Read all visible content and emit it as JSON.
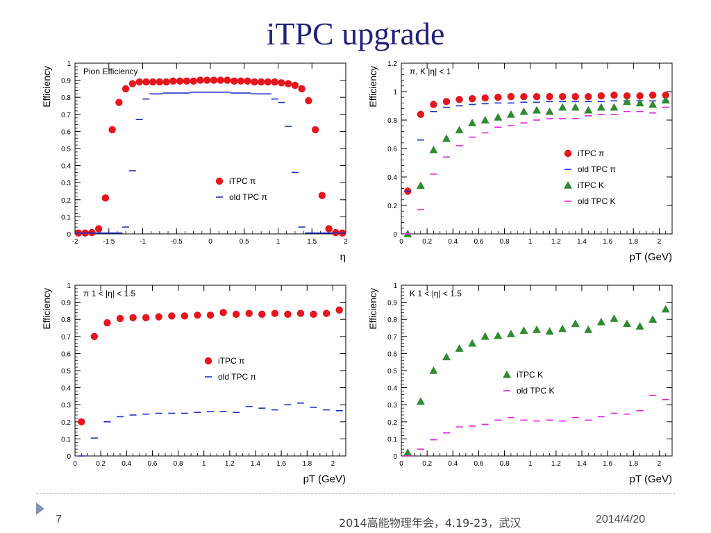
{
  "slide": {
    "title": "iTPC upgrade",
    "page_number": "7",
    "conference": "2014高能物理年会，4.19-23，武汉",
    "date": "2014/4/20"
  },
  "colors": {
    "red": "#e8141c",
    "blue": "#1c2ec8",
    "green": "#2e8b2e",
    "magenta": "#e61ee6",
    "title": "#1f1f7a"
  },
  "chart_data": [
    {
      "type": "scatter",
      "label": "Pion Efficiency",
      "xlabel": "η",
      "ylabel": "Efficiency",
      "xlim": [
        -2,
        2
      ],
      "ylim": [
        0,
        1
      ],
      "xticks": [
        "-2",
        "-1.5",
        "-1",
        "-0.5",
        "0",
        "0.5",
        "1",
        "1.5",
        "2"
      ],
      "yticks": [
        "0",
        "0.1",
        "0.2",
        "0.3",
        "0.4",
        "0.5",
        "0.6",
        "0.7",
        "0.8",
        "0.9",
        "1"
      ],
      "legend_position": "center-right",
      "series": [
        {
          "name": "iTPC π",
          "marker": "circle",
          "color": "#e8141c",
          "x": [
            -1.95,
            -1.85,
            -1.75,
            -1.65,
            -1.55,
            -1.45,
            -1.35,
            -1.25,
            -1.15,
            -1.05,
            -0.95,
            -0.85,
            -0.75,
            -0.65,
            -0.55,
            -0.45,
            -0.35,
            -0.25,
            -0.15,
            -0.05,
            0.05,
            0.15,
            0.25,
            0.35,
            0.45,
            0.55,
            0.65,
            0.75,
            0.85,
            0.95,
            1.05,
            1.15,
            1.25,
            1.35,
            1.45,
            1.55,
            1.65,
            1.75,
            1.85,
            1.95
          ],
          "y": [
            0.005,
            0.005,
            0.008,
            0.03,
            0.21,
            0.61,
            0.77,
            0.85,
            0.88,
            0.89,
            0.89,
            0.89,
            0.89,
            0.89,
            0.895,
            0.895,
            0.895,
            0.895,
            0.9,
            0.9,
            0.9,
            0.9,
            0.9,
            0.895,
            0.895,
            0.895,
            0.89,
            0.89,
            0.89,
            0.89,
            0.885,
            0.88,
            0.87,
            0.85,
            0.78,
            0.61,
            0.225,
            0.03,
            0.008,
            0.005
          ]
        },
        {
          "name": "old TPC π",
          "marker": "hline",
          "color": "#1c2ec8",
          "x": [
            -1.95,
            -1.85,
            -1.75,
            -1.65,
            -1.55,
            -1.45,
            -1.35,
            -1.25,
            -1.15,
            -1.05,
            -0.95,
            -0.85,
            -0.75,
            -0.65,
            -0.55,
            -0.45,
            -0.35,
            -0.25,
            -0.15,
            -0.05,
            0.05,
            0.15,
            0.25,
            0.35,
            0.45,
            0.55,
            0.65,
            0.75,
            0.85,
            0.95,
            1.05,
            1.15,
            1.25,
            1.35,
            1.45,
            1.55,
            1.65,
            1.75,
            1.85,
            1.95
          ],
          "y": [
            0.005,
            0.005,
            0.005,
            0.005,
            0.005,
            0.005,
            0.005,
            0.04,
            0.37,
            0.67,
            0.79,
            0.82,
            0.82,
            0.825,
            0.825,
            0.825,
            0.825,
            0.83,
            0.83,
            0.83,
            0.83,
            0.83,
            0.83,
            0.825,
            0.825,
            0.825,
            0.82,
            0.82,
            0.82,
            0.79,
            0.77,
            0.63,
            0.36,
            0.04,
            0.005,
            0.005,
            0.005,
            0.005,
            0.005,
            0.005
          ]
        }
      ]
    },
    {
      "type": "scatter",
      "label": "π, K |η| < 1",
      "xlabel": "pT (GeV)",
      "ylabel": "Efficiency",
      "xlim": [
        0,
        2.1
      ],
      "ylim": [
        0,
        1.2
      ],
      "xticks": [
        "0",
        "0.2",
        "0.4",
        "0.6",
        "0.8",
        "1",
        "1.2",
        "1.4",
        "1.6",
        "1.8",
        "2"
      ],
      "yticks": [
        "0",
        "0.2",
        "0.4",
        "0.6",
        "0.8",
        "1",
        "1.2"
      ],
      "legend_position": "center-right",
      "series": [
        {
          "name": "iTPC π",
          "marker": "circle",
          "color": "#e8141c",
          "x": [
            0.05,
            0.15,
            0.25,
            0.35,
            0.45,
            0.55,
            0.65,
            0.75,
            0.85,
            0.95,
            1.05,
            1.15,
            1.25,
            1.35,
            1.45,
            1.55,
            1.65,
            1.75,
            1.85,
            1.95,
            2.05
          ],
          "y": [
            0.3,
            0.84,
            0.91,
            0.93,
            0.945,
            0.95,
            0.955,
            0.96,
            0.965,
            0.965,
            0.965,
            0.965,
            0.965,
            0.965,
            0.965,
            0.97,
            0.975,
            0.97,
            0.97,
            0.975,
            0.975
          ]
        },
        {
          "name": "old TPC π",
          "marker": "hline",
          "color": "#1c2ec8",
          "x": [
            0.05,
            0.15,
            0.25,
            0.35,
            0.45,
            0.55,
            0.65,
            0.75,
            0.85,
            0.95,
            1.05,
            1.15,
            1.25,
            1.35,
            1.45,
            1.55,
            1.65,
            1.75,
            1.85,
            1.95,
            2.05
          ],
          "y": [
            0.3,
            0.66,
            0.86,
            0.89,
            0.9,
            0.91,
            0.915,
            0.92,
            0.92,
            0.925,
            0.925,
            0.93,
            0.93,
            0.93,
            0.93,
            0.93,
            0.935,
            0.935,
            0.935,
            0.935,
            0.935
          ]
        },
        {
          "name": "iTPC K",
          "marker": "triangle",
          "color": "#2e8b2e",
          "x": [
            0.05,
            0.15,
            0.25,
            0.35,
            0.45,
            0.55,
            0.65,
            0.75,
            0.85,
            0.95,
            1.05,
            1.15,
            1.25,
            1.35,
            1.45,
            1.55,
            1.65,
            1.75,
            1.85,
            1.95,
            2.05
          ],
          "y": [
            0.0,
            0.34,
            0.59,
            0.67,
            0.73,
            0.78,
            0.8,
            0.82,
            0.84,
            0.86,
            0.87,
            0.86,
            0.89,
            0.89,
            0.87,
            0.89,
            0.89,
            0.93,
            0.92,
            0.91,
            0.94
          ]
        },
        {
          "name": "old TPC K",
          "marker": "hline",
          "color": "#e61ee6",
          "x": [
            0.05,
            0.15,
            0.25,
            0.35,
            0.45,
            0.55,
            0.65,
            0.75,
            0.85,
            0.95,
            1.05,
            1.15,
            1.25,
            1.35,
            1.45,
            1.55,
            1.65,
            1.75,
            1.85,
            1.95,
            2.05
          ],
          "y": [
            0.0,
            0.17,
            0.42,
            0.54,
            0.62,
            0.68,
            0.71,
            0.75,
            0.76,
            0.78,
            0.8,
            0.81,
            0.81,
            0.81,
            0.83,
            0.84,
            0.84,
            0.86,
            0.86,
            0.85,
            0.89
          ]
        }
      ]
    },
    {
      "type": "scatter",
      "label": "π  1 < |η| < 1.5",
      "xlabel": "pT (GeV)",
      "ylabel": "Efficiency",
      "xlim": [
        0,
        2.1
      ],
      "ylim": [
        0,
        1
      ],
      "xticks": [
        "0",
        "0.2",
        "0.4",
        "0.6",
        "0.8",
        "1",
        "1.2",
        "1.4",
        "1.6",
        "1.8",
        "2"
      ],
      "yticks": [
        "0",
        "0.1",
        "0.2",
        "0.3",
        "0.4",
        "0.5",
        "0.6",
        "0.7",
        "0.8",
        "0.9",
        "1"
      ],
      "legend_position": "center-right",
      "series": [
        {
          "name": "iTPC π",
          "marker": "circle",
          "color": "#e8141c",
          "x": [
            0.05,
            0.15,
            0.25,
            0.35,
            0.45,
            0.55,
            0.65,
            0.75,
            0.85,
            0.95,
            1.05,
            1.15,
            1.25,
            1.35,
            1.45,
            1.55,
            1.65,
            1.75,
            1.85,
            1.95,
            2.05
          ],
          "y": [
            0.2,
            0.7,
            0.78,
            0.805,
            0.81,
            0.81,
            0.815,
            0.82,
            0.82,
            0.825,
            0.825,
            0.84,
            0.83,
            0.835,
            0.83,
            0.835,
            0.83,
            0.835,
            0.83,
            0.835,
            0.855
          ]
        },
        {
          "name": "old TPC π",
          "marker": "hline",
          "color": "#1c2ec8",
          "x": [
            0.05,
            0.15,
            0.25,
            0.35,
            0.45,
            0.55,
            0.65,
            0.75,
            0.85,
            0.95,
            1.05,
            1.15,
            1.25,
            1.35,
            1.45,
            1.55,
            1.65,
            1.75,
            1.85,
            1.95,
            2.05
          ],
          "y": [
            0.0,
            0.105,
            0.2,
            0.23,
            0.24,
            0.245,
            0.25,
            0.25,
            0.25,
            0.255,
            0.26,
            0.26,
            0.255,
            0.29,
            0.28,
            0.27,
            0.3,
            0.31,
            0.285,
            0.27,
            0.265
          ]
        }
      ]
    },
    {
      "type": "scatter",
      "label": "K  1 < |η| < 1.5",
      "xlabel": "pT (GeV)",
      "ylabel": "Efficiency",
      "xlim": [
        0,
        2.1
      ],
      "ylim": [
        0,
        1
      ],
      "xticks": [
        "0",
        "0.2",
        "0.4",
        "0.6",
        "0.8",
        "1",
        "1.2",
        "1.4",
        "1.6",
        "1.8",
        "2"
      ],
      "yticks": [
        "0",
        "0.1",
        "0.2",
        "0.3",
        "0.4",
        "0.5",
        "0.6",
        "0.7",
        "0.8",
        "0.9",
        "1"
      ],
      "legend_position": "center-right",
      "series": [
        {
          "name": "iTPC K",
          "marker": "triangle",
          "color": "#2e8b2e",
          "x": [
            0.05,
            0.15,
            0.25,
            0.35,
            0.45,
            0.55,
            0.65,
            0.75,
            0.85,
            0.95,
            1.05,
            1.15,
            1.25,
            1.35,
            1.45,
            1.55,
            1.65,
            1.75,
            1.85,
            1.95,
            2.05
          ],
          "y": [
            0.02,
            0.32,
            0.5,
            0.58,
            0.63,
            0.66,
            0.7,
            0.705,
            0.715,
            0.735,
            0.74,
            0.73,
            0.745,
            0.775,
            0.74,
            0.785,
            0.805,
            0.775,
            0.76,
            0.8,
            0.86
          ]
        },
        {
          "name": "old TPC K",
          "marker": "hline",
          "color": "#e61ee6",
          "x": [
            0.05,
            0.15,
            0.25,
            0.35,
            0.45,
            0.55,
            0.65,
            0.75,
            0.85,
            0.95,
            1.05,
            1.15,
            1.25,
            1.35,
            1.45,
            1.55,
            1.65,
            1.75,
            1.85,
            1.95,
            2.05
          ],
          "y": [
            0.0,
            0.04,
            0.095,
            0.135,
            0.17,
            0.175,
            0.185,
            0.21,
            0.225,
            0.21,
            0.205,
            0.21,
            0.205,
            0.225,
            0.21,
            0.23,
            0.25,
            0.245,
            0.265,
            0.355,
            0.33
          ]
        }
      ]
    }
  ]
}
